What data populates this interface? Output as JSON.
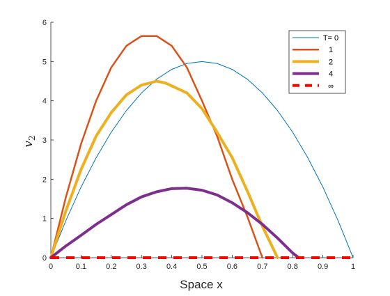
{
  "chart_data": {
    "type": "line",
    "xlabel": "Space x",
    "ylabel": "v",
    "ylabel_subscript": "2",
    "xlim": [
      0,
      1
    ],
    "ylim": [
      0,
      6
    ],
    "xticks": [
      "0",
      "0.1",
      "0.2",
      "0.3",
      "0.4",
      "0.5",
      "0.6",
      "0.7",
      "0.8",
      "0.9",
      "1"
    ],
    "yticks": [
      "0",
      "1",
      "2",
      "3",
      "4",
      "5",
      "6"
    ],
    "grid": false,
    "legend_position": "top-right",
    "series": [
      {
        "name": "T= 0",
        "color": "#0072BD",
        "style": "solid",
        "weight": "thin",
        "x": [
          0,
          0.05,
          0.1,
          0.15,
          0.2,
          0.25,
          0.3,
          0.35,
          0.4,
          0.45,
          0.5,
          0.55,
          0.6,
          0.65,
          0.7,
          0.75,
          0.8,
          0.85,
          0.9,
          0.95,
          1.0
        ],
        "y": [
          0,
          0.95,
          1.8,
          2.55,
          3.2,
          3.75,
          4.2,
          4.55,
          4.8,
          4.95,
          5.0,
          4.95,
          4.8,
          4.55,
          4.2,
          3.75,
          3.2,
          2.55,
          1.8,
          0.95,
          0
        ]
      },
      {
        "name": "1",
        "color": "#D95319",
        "style": "solid",
        "weight": "medium",
        "x": [
          0,
          0.05,
          0.1,
          0.15,
          0.2,
          0.25,
          0.3,
          0.35,
          0.4,
          0.45,
          0.5,
          0.55,
          0.6,
          0.65,
          0.7
        ],
        "y": [
          0,
          1.55,
          2.9,
          4.0,
          4.85,
          5.4,
          5.65,
          5.65,
          5.4,
          4.85,
          4.0,
          3.1,
          2.0,
          1.05,
          0
        ]
      },
      {
        "name": "2",
        "color": "#EDB120",
        "style": "solid",
        "weight": "thick",
        "x": [
          0,
          0.05,
          0.1,
          0.15,
          0.2,
          0.25,
          0.3,
          0.35,
          0.38,
          0.45,
          0.5,
          0.55,
          0.6,
          0.65,
          0.7,
          0.75
        ],
        "y": [
          0,
          1.2,
          2.25,
          3.1,
          3.7,
          4.15,
          4.4,
          4.5,
          4.45,
          4.2,
          3.8,
          3.2,
          2.55,
          1.7,
          0.8,
          0
        ]
      },
      {
        "name": "4",
        "color": "#7E2F8E",
        "style": "solid",
        "weight": "thick",
        "x": [
          0,
          0.05,
          0.1,
          0.15,
          0.2,
          0.25,
          0.3,
          0.35,
          0.4,
          0.45,
          0.5,
          0.55,
          0.6,
          0.65,
          0.7,
          0.75,
          0.8,
          0.82
        ],
        "y": [
          0,
          0.3,
          0.57,
          0.85,
          1.1,
          1.35,
          1.55,
          1.68,
          1.76,
          1.77,
          1.72,
          1.6,
          1.4,
          1.15,
          0.85,
          0.5,
          0.12,
          0
        ]
      },
      {
        "name": "∞",
        "color": "#FF0000",
        "style": "dashed",
        "weight": "thick",
        "x": [
          0,
          1
        ],
        "y": [
          0,
          0
        ]
      }
    ]
  }
}
